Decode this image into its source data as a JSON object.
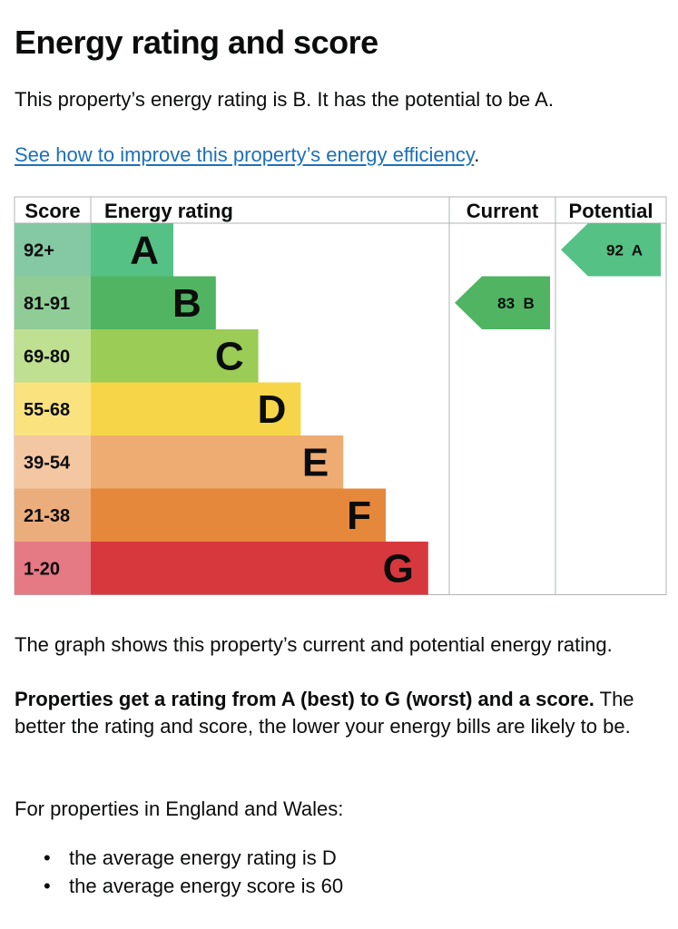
{
  "page": {
    "title": "Energy rating and score",
    "intro": "This property’s energy rating is B. It has the potential to be A.",
    "link_text": "See how to improve this property’s energy efficiency",
    "link_suffix": ".",
    "graph_description": "The graph shows this property’s current and potential energy rating.",
    "rating_explainer_bold": "Properties get a rating from A (best) to G (worst) and a score.",
    "rating_explainer_rest": " The better the rating and score, the lower your energy bills are likely to be.",
    "region_intro": "For properties in England and Wales:",
    "averages": [
      "the average energy rating is D",
      "the average energy score is 60"
    ],
    "bullet": "•"
  },
  "chart_data": {
    "type": "bar",
    "headers": {
      "score": "Score",
      "rating": "Energy rating",
      "current": "Current",
      "potential": "Potential"
    },
    "bands": [
      {
        "letter": "A",
        "range": "92+",
        "color": "#55c185",
        "score_color": "#84c9a3"
      },
      {
        "letter": "B",
        "range": "81-91",
        "color": "#50b463",
        "score_color": "#8fcc96"
      },
      {
        "letter": "C",
        "range": "69-80",
        "color": "#9bcc55",
        "score_color": "#bfe091"
      },
      {
        "letter": "D",
        "range": "55-68",
        "color": "#f7d548",
        "score_color": "#fae27f"
      },
      {
        "letter": "E",
        "range": "39-54",
        "color": "#efac72",
        "score_color": "#f4c7a3"
      },
      {
        "letter": "F",
        "range": "21-38",
        "color": "#e5883c",
        "score_color": "#ecad7c"
      },
      {
        "letter": "G",
        "range": "1-20",
        "color": "#d7383e",
        "score_color": "#e57984"
      }
    ],
    "current": {
      "score": 83,
      "letter": "B",
      "label": "83  B",
      "color": "#50b463"
    },
    "potential": {
      "score": 92,
      "letter": "A",
      "label": "92  A",
      "color": "#55c185"
    }
  }
}
